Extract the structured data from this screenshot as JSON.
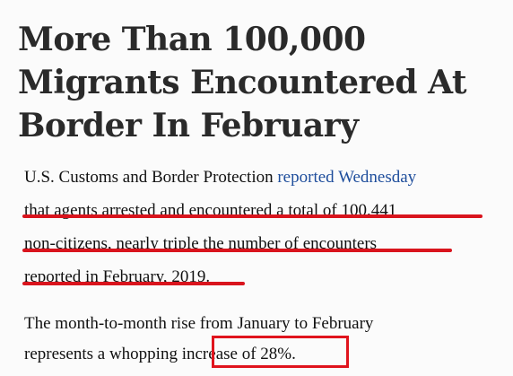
{
  "headline": {
    "line1": "More Than 100,000",
    "line2": "Migrants Encountered At",
    "line3": "Border In February"
  },
  "paragraph1": {
    "line1_text": "U.S. Customs and Border Protection ",
    "line1_link": "reported Wednesday",
    "line2": "that agents arrested and encountered a total of 100,441",
    "line3": "non-citizens, nearly triple the number of encounters",
    "line4": "reported in February, 2019."
  },
  "paragraph2": {
    "line1": "The month-to-month rise from January to February",
    "line2_text": "represents a whopping ",
    "line2_highlight": "increase of 28%."
  },
  "annotation_colors": {
    "underline": "#d9141d",
    "box": "#e0141d"
  }
}
